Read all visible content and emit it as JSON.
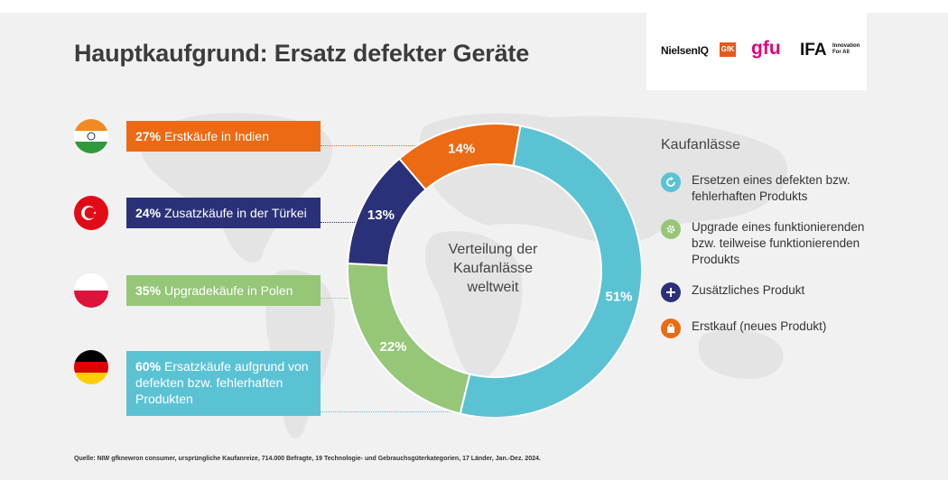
{
  "title": "Hauptkaufgrund: Ersatz defekter Geräte",
  "logos": {
    "nielsen": "NielsenIQ",
    "gfk": "GfK",
    "gfu": "gfu",
    "ifa": "IFA",
    "ifa_tag_1": "Innovation",
    "ifa_tag_2": "For All"
  },
  "callouts": [
    {
      "pct": "27%",
      "text": "Erstkäufe in Indien",
      "color": "#ec6a13",
      "flag": "india-flag-icon"
    },
    {
      "pct": "24%",
      "text": "Zusatzkäufe in der Türkei",
      "color": "#2b3179",
      "flag": "turkey-flag-icon"
    },
    {
      "pct": "35%",
      "text": "Upgradekäufe in Polen",
      "color": "#96c678",
      "flag": "poland-flag-icon"
    },
    {
      "pct": "60%",
      "text": "Ersatzkäufe aufgrund von defekten bzw. fehlerhaften Produkten",
      "color": "#5bc2d4",
      "flag": "germany-flag-icon"
    }
  ],
  "chart_data": {
    "type": "pie",
    "title": "Verteilung der Kaufanlässe weltweit",
    "categories": [
      "Ersetzen eines defekten bzw. fehlerhaften Produkts",
      "Upgrade eines funktionierenden bzw. teilweise funktionierenden Produkts",
      "Zusätzliches Produkt",
      "Erstkauf (neues Produkt)"
    ],
    "values": [
      51,
      22,
      13,
      14
    ],
    "labels": [
      "51%",
      "22%",
      "13%",
      "14%"
    ],
    "colors": [
      "#5bc2d4",
      "#96c678",
      "#2b3179",
      "#ec6a13"
    ],
    "legend_title": "Kaufanlässe",
    "legend_placement": "right",
    "donut": true
  },
  "center_text": {
    "line1": "Verteilung der",
    "line2": "Kaufanlässe",
    "line3": "weltweit"
  },
  "legend_items": [
    {
      "label": "Ersetzen eines defekten bzw. fehlerhaften Produkts",
      "icon": "refresh-icon",
      "color": "#5bc2d4"
    },
    {
      "label": "Upgrade eines funktionierenden bzw. teilweise funktionierenden Produkts",
      "icon": "gear-icon",
      "color": "#96c678"
    },
    {
      "label": "Zusätzliches Produkt",
      "icon": "plus-icon",
      "color": "#2b3179"
    },
    {
      "label": "Erstkauf (neues Produkt)",
      "icon": "shopping-bag-icon",
      "color": "#ec6a13"
    }
  ],
  "source": "Quelle: NIW gfknewron consumer, ursprüngliche Kaufanreize, 714.000 Befragte, 19 Technologie- und Gebrauchsgüterkategorien, 17 Länder, Jan.-Dez. 2024."
}
